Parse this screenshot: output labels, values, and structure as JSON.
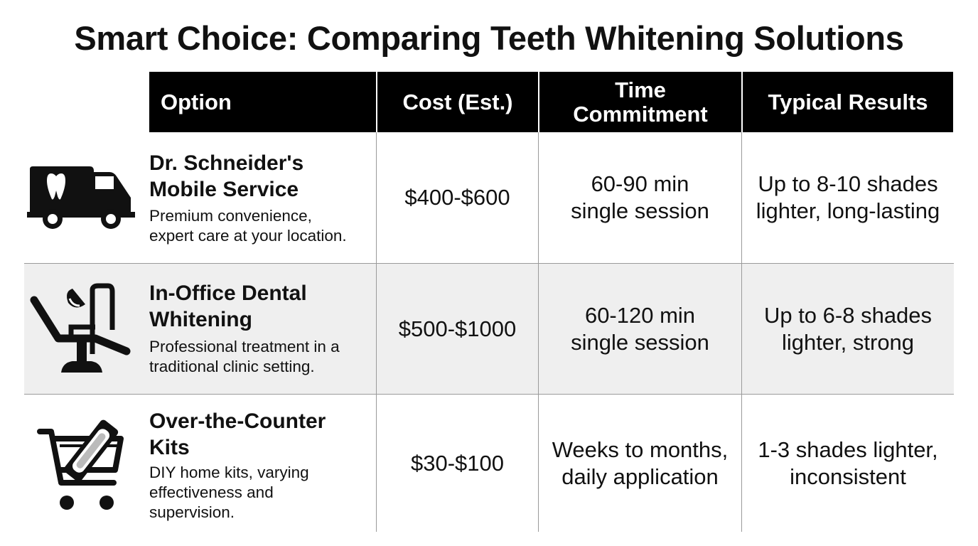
{
  "title": "Smart Choice: Comparing Teeth Whitening Solutions",
  "columns": [
    "Option",
    "Cost (Est.)",
    "Time\nCommitment",
    "Typical Results"
  ],
  "rows": [
    {
      "icon": "mobile-van-tooth-icon",
      "name": "Dr. Schneider's\nMobile Service",
      "description": "Premium convenience,\nexpert care at your location.",
      "cost": "$400-$600",
      "time": "60-90 min\nsingle session",
      "results": "Up to 8-10 shades\nlighter, long-lasting"
    },
    {
      "icon": "dental-chair-icon",
      "name": "In-Office Dental\nWhitening",
      "description": "Professional treatment in a\ntraditional clinic setting.",
      "cost": "$500-$1000",
      "time": "60-120 min\nsingle session",
      "results": "Up to 6-8 shades\nlighter, strong"
    },
    {
      "icon": "shopping-cart-kit-icon",
      "name": "Over-the-Counter\nKits",
      "description": "DIY home kits, varying\neffectiveness and\nsupervision.",
      "cost": "$30-$100",
      "time": "Weeks to months,\ndaily application",
      "results": "1-3 shades lighter,\ninconsistent"
    }
  ],
  "colors": {
    "header_bg": "#000000",
    "header_text": "#ffffff",
    "alt_row_bg": "#efefef",
    "grid_line": "#9a9a9a"
  }
}
